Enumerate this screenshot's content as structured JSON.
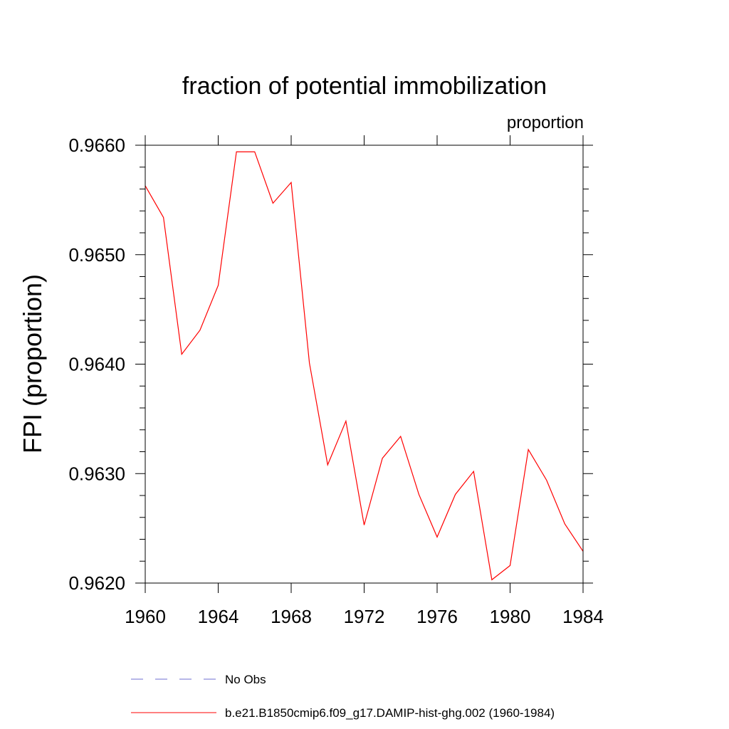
{
  "chart_data": {
    "type": "line",
    "title": "fraction of potential immobilization",
    "subtitle": "proportion",
    "xlabel": "",
    "ylabel": "FPI  (proportion)",
    "xlim": [
      1960,
      1984
    ],
    "ylim": [
      0.962,
      0.966
    ],
    "x_ticks": [
      "1960",
      "1964",
      "1968",
      "1972",
      "1976",
      "1980",
      "1984"
    ],
    "y_ticks": [
      "0.9620",
      "0.9630",
      "0.9640",
      "0.9650",
      "0.9660"
    ],
    "grid": false,
    "legend_position": "bottom",
    "x": [
      1960,
      1961,
      1962,
      1963,
      1964,
      1965,
      1966,
      1967,
      1968,
      1969,
      1970,
      1971,
      1972,
      1973,
      1974,
      1975,
      1976,
      1977,
      1978,
      1979,
      1980,
      1981,
      1982,
      1983,
      1984
    ],
    "series": [
      {
        "name": "b.e21.B1850cmip6.f09_g17.DAMIP-hist-ghg.002 (1960-1984)",
        "color": "#ff0000",
        "dash": "solid",
        "values": [
          0.96563,
          0.96534,
          0.96409,
          0.96431,
          0.96472,
          0.96594,
          0.96594,
          0.96547,
          0.96566,
          0.96401,
          0.96308,
          0.96348,
          0.96253,
          0.96314,
          0.96334,
          0.96281,
          0.96242,
          0.96281,
          0.96302,
          0.96203,
          0.96216,
          0.96322,
          0.96294,
          0.96254,
          0.96229
        ]
      }
    ],
    "legend": [
      {
        "label": "No Obs",
        "color": "#6f6fd0",
        "dash": "dashed"
      },
      {
        "label": "b.e21.B1850cmip6.f09_g17.DAMIP-hist-ghg.002 (1960-1984)",
        "color": "#ff0000",
        "dash": "solid"
      }
    ]
  }
}
